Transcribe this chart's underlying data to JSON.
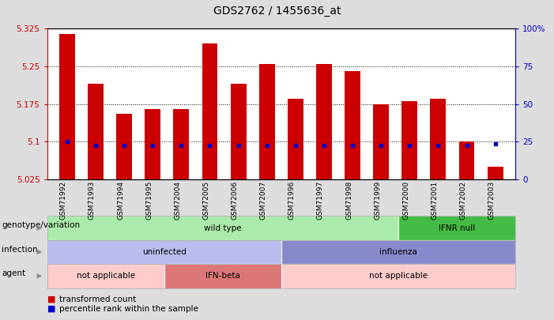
{
  "title": "GDS2762 / 1455636_at",
  "samples": [
    "GSM71992",
    "GSM71993",
    "GSM71994",
    "GSM71995",
    "GSM72004",
    "GSM72005",
    "GSM72006",
    "GSM72007",
    "GSM71996",
    "GSM71997",
    "GSM71998",
    "GSM71999",
    "GSM72000",
    "GSM72001",
    "GSM72002",
    "GSM72003"
  ],
  "bar_tops": [
    5.315,
    5.215,
    5.155,
    5.165,
    5.165,
    5.295,
    5.215,
    5.255,
    5.185,
    5.255,
    5.24,
    5.175,
    5.18,
    5.185,
    5.1,
    5.05
  ],
  "blue_markers": [
    5.1,
    5.092,
    5.092,
    5.092,
    5.092,
    5.092,
    5.092,
    5.092,
    5.092,
    5.092,
    5.092,
    5.092,
    5.092,
    5.092,
    5.092,
    5.095
  ],
  "bar_base": 5.025,
  "ylim": [
    5.025,
    5.325
  ],
  "yticks": [
    5.025,
    5.1,
    5.175,
    5.25,
    5.325
  ],
  "ytick_labels": [
    "5.025",
    "5.1",
    "5.175",
    "5.25",
    "5.325"
  ],
  "right_yticks": [
    0,
    25,
    50,
    75,
    100
  ],
  "right_ytick_labels": [
    "0",
    "25",
    "50",
    "75",
    "100%"
  ],
  "bar_color": "#cc0000",
  "blue_color": "#0000cc",
  "bg_color": "#dddddd",
  "plot_bg": "#ffffff",
  "genotype_row": {
    "label": "genotype/variation",
    "segments": [
      {
        "text": "wild type",
        "start": 0,
        "end": 12,
        "color": "#aaeaaa"
      },
      {
        "text": "IFNR null",
        "start": 12,
        "end": 16,
        "color": "#44bb44"
      }
    ]
  },
  "infection_row": {
    "label": "infection",
    "segments": [
      {
        "text": "uninfected",
        "start": 0,
        "end": 8,
        "color": "#bbbbee"
      },
      {
        "text": "influenza",
        "start": 8,
        "end": 16,
        "color": "#8888cc"
      }
    ]
  },
  "agent_row": {
    "label": "agent",
    "segments": [
      {
        "text": "not applicable",
        "start": 0,
        "end": 4,
        "color": "#ffcccc"
      },
      {
        "text": "IFN-beta",
        "start": 4,
        "end": 8,
        "color": "#dd7777"
      },
      {
        "text": "not applicable",
        "start": 8,
        "end": 16,
        "color": "#ffcccc"
      }
    ]
  },
  "legend_items": [
    {
      "color": "#cc0000",
      "label": "transformed count"
    },
    {
      "color": "#0000cc",
      "label": "percentile rank within the sample"
    }
  ]
}
